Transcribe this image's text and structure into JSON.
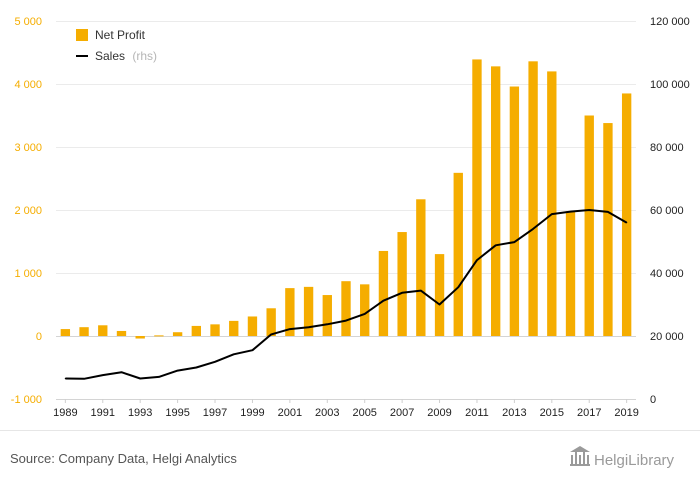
{
  "chart_data": {
    "type": "bar",
    "x": [
      "1989",
      "1990",
      "1991",
      "1992",
      "1993",
      "1994",
      "1995",
      "1996",
      "1997",
      "1998",
      "1999",
      "2000",
      "2001",
      "2002",
      "2003",
      "2004",
      "2005",
      "2006",
      "2007",
      "2008",
      "2009",
      "2010",
      "2011",
      "2012",
      "2013",
      "2014",
      "2015",
      "2016",
      "2017",
      "2018",
      "2019"
    ],
    "x_tick_labels": [
      "1989",
      "1991",
      "1993",
      "1995",
      "1997",
      "1999",
      "2001",
      "2003",
      "2005",
      "2007",
      "2009",
      "2011",
      "2013",
      "2015",
      "2017",
      "2019"
    ],
    "series": [
      {
        "name": "Net Profit",
        "type": "bar",
        "axis": "left",
        "color": "#f5ad00",
        "values": [
          110,
          140,
          170,
          80,
          -40,
          10,
          60,
          160,
          185,
          240,
          310,
          440,
          760,
          780,
          650,
          870,
          820,
          1350,
          1650,
          2170,
          1300,
          2590,
          4390,
          4280,
          3960,
          4360,
          4200,
          1980,
          3500,
          3380,
          3850
        ]
      },
      {
        "name": "Sales",
        "name_suffix": "(rhs)",
        "type": "line",
        "axis": "right",
        "color": "#000000",
        "values": [
          6500,
          6400,
          7600,
          8500,
          6500,
          7000,
          9000,
          10000,
          11800,
          14200,
          15500,
          20500,
          22200,
          22800,
          23700,
          24900,
          27000,
          31200,
          33700,
          34400,
          30000,
          35500,
          44100,
          48800,
          49800,
          54000,
          58700,
          59500,
          60000,
          59400,
          56000
        ]
      }
    ],
    "y_left": {
      "min": -1000,
      "max": 5000,
      "ticks": [
        -1000,
        0,
        1000,
        2000,
        3000,
        4000,
        5000
      ],
      "tick_labels": [
        "-1 000",
        "0",
        "1 000",
        "2 000",
        "3 000",
        "4 000",
        "5 000"
      ]
    },
    "y_right": {
      "min": 0,
      "max": 120000,
      "ticks": [
        0,
        20000,
        40000,
        60000,
        80000,
        100000,
        120000
      ],
      "tick_labels": [
        "0",
        "20 000",
        "40 000",
        "60 000",
        "80 000",
        "100 000",
        "120 000"
      ]
    },
    "legend": {
      "placement": "top-left"
    },
    "grid": true
  },
  "footer": {
    "source": "Source: Company Data, Helgi Analytics",
    "logo": "HelgiLibrary"
  }
}
